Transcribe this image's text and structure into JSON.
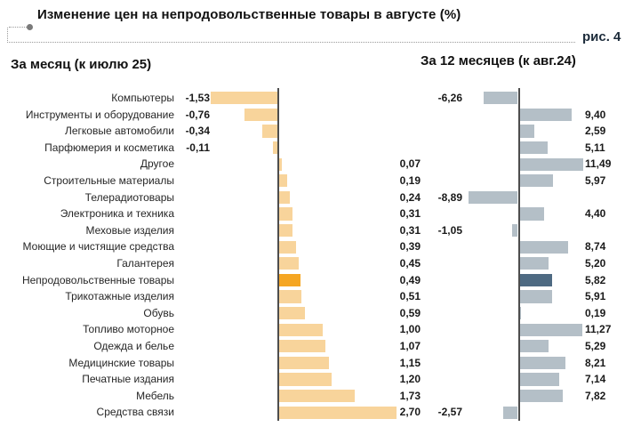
{
  "title": "Изменение цен на непродовольственные товары в августе (%)",
  "figure_label": "рис. 4",
  "panels": {
    "left_header": "За месяц (к июлю 25)",
    "right_header": "За 12 месяцев (к авг.24)"
  },
  "colors": {
    "month_bar": "#F8D49B",
    "month_bar_highlight": "#F5A623",
    "year_bar": "#B4BFC7",
    "year_bar_highlight": "#4E6A82",
    "axis": "#4d4d4d"
  },
  "chart_data": {
    "type": "bar",
    "orientation": "horizontal",
    "title": "Изменение цен на непродовольственные товары в августе (%)",
    "categories": [
      "Компьютеры",
      "Инструменты и оборудование",
      "Легковые автомобили",
      "Парфюмерия и косметика",
      "Другое",
      "Строительные материалы",
      "Телерадиотовары",
      "Электроника и техника",
      "Меховые изделия",
      "Моющие и чистящие средства",
      "Галантерея",
      "Непродовольственные товары",
      "Трикотажные изделия",
      "Обувь",
      "Топливо моторное",
      "Одежда и белье",
      "Медицинские товары",
      "Печатные издания",
      "Мебель",
      "Средства связи"
    ],
    "series": [
      {
        "name": "За месяц (к июлю 25)",
        "values": [
          -1.53,
          -0.76,
          -0.34,
          -0.11,
          0.07,
          0.19,
          0.24,
          0.31,
          0.31,
          0.39,
          0.45,
          0.49,
          0.51,
          0.59,
          1.0,
          1.07,
          1.15,
          1.2,
          1.73,
          2.7
        ],
        "labels": [
          "-1,53",
          "-0,76",
          "-0,34",
          "-0,11",
          "0,07",
          "0,19",
          "0,24",
          "0,31",
          "0,31",
          "0,39",
          "0,45",
          "0,49",
          "0,51",
          "0,59",
          "1,00",
          "1,07",
          "1,15",
          "1,20",
          "1,73",
          "2,70"
        ]
      },
      {
        "name": "За 12 месяцев (к авг.24)",
        "values": [
          -6.26,
          9.4,
          2.59,
          5.11,
          11.49,
          5.97,
          -8.89,
          4.4,
          -1.05,
          8.74,
          5.2,
          5.82,
          5.91,
          0.19,
          11.27,
          5.29,
          8.21,
          7.14,
          7.82,
          -2.57
        ],
        "labels": [
          "-6,26",
          "9,40",
          "2,59",
          "5,11",
          "11,49",
          "5,97",
          "-8,89",
          "4,40",
          "-1,05",
          "8,74",
          "5,20",
          "5,82",
          "5,91",
          "0,19",
          "11,27",
          "5,29",
          "8,21",
          "7,14",
          "7,82",
          "-2,57"
        ]
      }
    ],
    "highlight_category": "Непродовольственные товары",
    "highlight_index": 11,
    "value_label_format": "comma-decimal",
    "xlim_month": [
      -2,
      3
    ],
    "xlim_year": [
      -10,
      12
    ],
    "grid": false,
    "legend_position": "none"
  }
}
